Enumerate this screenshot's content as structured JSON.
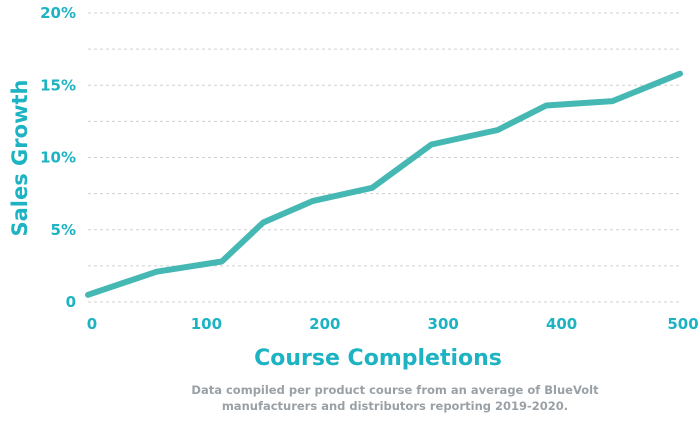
{
  "chart_data": {
    "type": "line",
    "title": "",
    "xlabel": "Course Completions",
    "ylabel": "Sales Growth",
    "xlim": [
      0,
      500
    ],
    "ylim": [
      0,
      20
    ],
    "x_ticks": [
      "0",
      "100",
      "200",
      "300",
      "400",
      "500"
    ],
    "y_ticks": [
      "0",
      "5%",
      "10%",
      "15%",
      "20%"
    ],
    "grid": "horizontal dashed",
    "series": [
      {
        "color": "#45b8b4",
        "x": [
          0,
          58,
          113,
          148,
          190,
          240,
          290,
          346,
          387,
          443,
          500
        ],
        "y": [
          0.5,
          2.1,
          2.8,
          5.5,
          7.0,
          7.9,
          10.9,
          11.9,
          13.6,
          13.9,
          15.8
        ]
      }
    ]
  },
  "caption": {
    "line1": "Data compiled per product course from an average of BlueVolt",
    "line2": "manufacturers and distributors reporting 2019-2020."
  },
  "colors": {
    "line": "#45b8b4",
    "axis_text": "#1db3c3",
    "grid": "#d0d0d0",
    "caption": "#9aa1a6"
  }
}
